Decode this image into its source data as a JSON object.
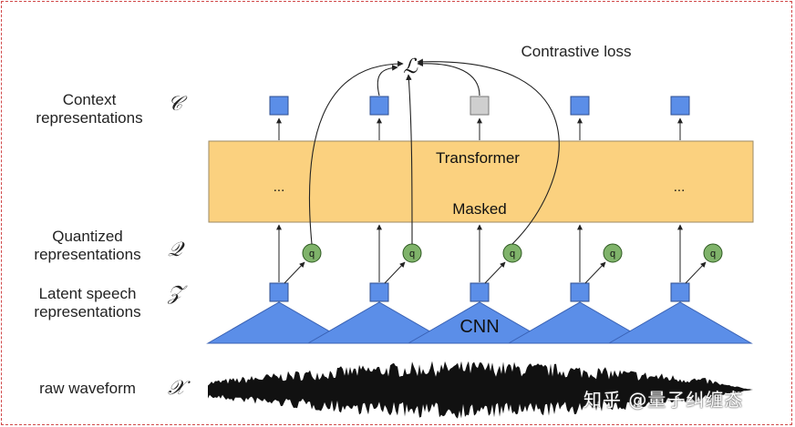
{
  "labels": {
    "context": "Context\nrepresentations",
    "quantized": "Quantized\nrepresentations",
    "latent": "Latent speech\nrepresentations",
    "raw": "raw waveform"
  },
  "symbols": {
    "context": "𝒞",
    "quantized": "𝒬",
    "latent": "𝒵",
    "raw": "𝒳",
    "loss": "ℒ"
  },
  "contrastive_loss": "Contrastive loss",
  "transformer": {
    "title": "Transformer",
    "masked": "Masked",
    "ellipsis_left": "...",
    "ellipsis_right": "..."
  },
  "q_label": "q",
  "cnn_label": "CNN",
  "watermark": "知乎 @量子纠缠态",
  "colors": {
    "blue": "#5b8ee8",
    "grey": "#cfcfcf",
    "green": "#7fb36a",
    "transformer": "#fbd17f"
  }
}
